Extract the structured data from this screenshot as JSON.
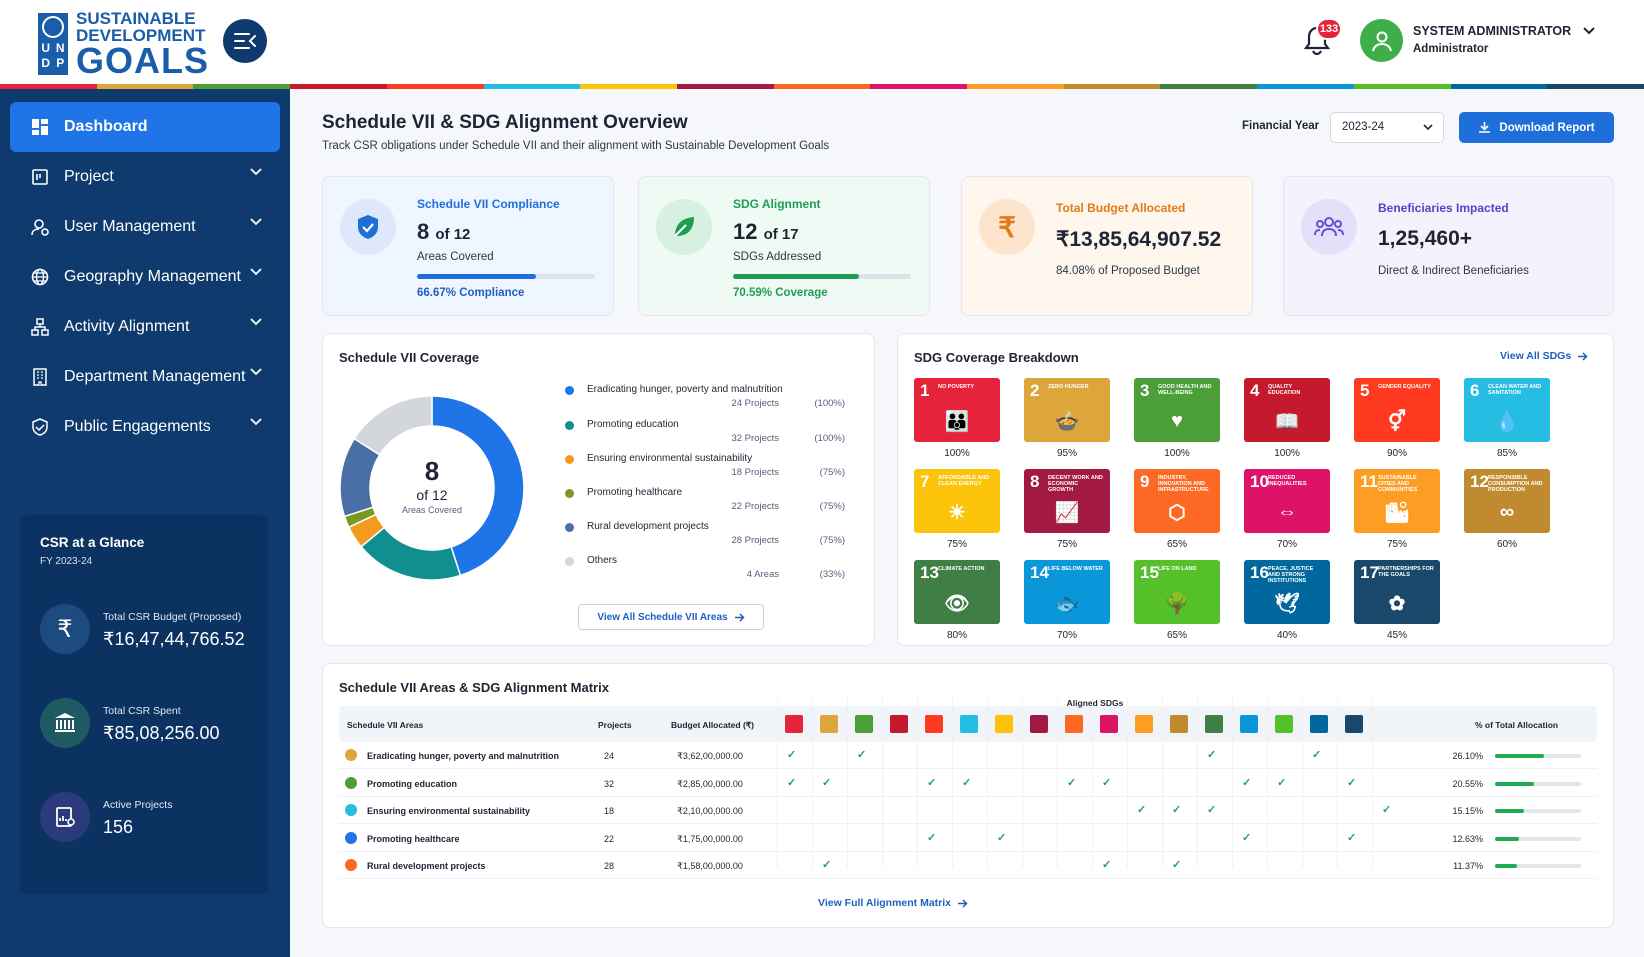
{
  "brand": {
    "line1": "SUSTAINABLE",
    "line2": "DEVELOPMENT",
    "line3": "GOALS",
    "un_letters": [
      "U",
      "N",
      "D",
      "P"
    ]
  },
  "header": {
    "notification_count": "133",
    "user_name": "SYSTEM ADMINISTRATOR",
    "user_role": "Administrator"
  },
  "colors": {
    "primary": "#1f6fdb",
    "sidebar": "#0e3a6d",
    "active": "#1f74e8",
    "success": "#1faa55"
  },
  "sidebar": {
    "items": [
      {
        "label": "Dashboard",
        "icon": "dashboard-icon"
      },
      {
        "label": "Project",
        "icon": "project-icon"
      },
      {
        "label": "User Management",
        "icon": "user-icon"
      },
      {
        "label": "Geography Management",
        "icon": "globe-icon"
      },
      {
        "label": "Activity Alignment",
        "icon": "hierarchy-icon"
      },
      {
        "label": "Department Management",
        "icon": "building-icon"
      },
      {
        "label": "Public Engagements",
        "icon": "handshake-icon"
      }
    ],
    "glance": {
      "title": "CSR at a Glance",
      "subtitle": "FY 2023-24",
      "stats": [
        {
          "label": "Total CSR Budget (Proposed)",
          "value": "₹16,47,44,766.52",
          "icon": "rupee-icon"
        },
        {
          "label": "Total CSR Spent",
          "value": "₹85,08,256.00",
          "icon": "bank-icon"
        },
        {
          "label": "Active Projects",
          "value": "156",
          "icon": "report-icon"
        }
      ]
    }
  },
  "page": {
    "title": "Schedule VII & SDG Alignment Overview",
    "subtitle": "Track CSR obligations under Schedule VII and their alignment with Sustainable Development Goals",
    "fy_label": "Financial Year",
    "fy_value": "2023-24",
    "download_label": "Download Report"
  },
  "kpis": [
    {
      "title": "Schedule VII Compliance",
      "value": "8",
      "of": "of 12",
      "sub": "Areas Covered",
      "progress": 66.67,
      "footer": "66.67% Compliance",
      "color": "#1f6fdb"
    },
    {
      "title": "SDG Alignment",
      "value": "12",
      "of": "of 17",
      "sub": "SDGs Addressed",
      "progress": 70.59,
      "footer": "70.59% Coverage",
      "color": "#1f9d55"
    },
    {
      "title": "Total Budget Allocated",
      "value": "₹13,85,64,907.52",
      "sub": "84.08% of Proposed Budget",
      "color": "#e07b19"
    },
    {
      "title": "Beneficiaries Impacted",
      "value": "1,25,460+",
      "sub": "Direct & Indirect Beneficiaries",
      "color": "#6a4cd6"
    }
  ],
  "coverage": {
    "title": "Schedule VII Coverage",
    "center_value": "8",
    "center_of": "of 12",
    "center_label": "Areas Covered",
    "legend": [
      {
        "name": "Eradicating hunger, poverty and malnutrition",
        "projects": "24 Projects",
        "pct": "(100%)",
        "color": "#1f74e8",
        "value": 45
      },
      {
        "name": "Promoting education",
        "projects": "32 Projects",
        "pct": "(100%)",
        "color": "#0f8f8f",
        "value": 19
      },
      {
        "name": "Ensuring environmental sustainability",
        "projects": "18 Projects",
        "pct": "(75%)",
        "color": "#f39b1f",
        "value": 4
      },
      {
        "name": "Promoting healthcare",
        "projects": "22 Projects",
        "pct": "(75%)",
        "color": "#7a9a1f",
        "value": 2
      },
      {
        "name": "Rural development projects",
        "projects": "28 Projects",
        "pct": "(75%)",
        "color": "#4a6fa5",
        "value": 14
      },
      {
        "name": "Others",
        "projects": "4 Areas",
        "pct": "(33%)",
        "color": "#d3d6db",
        "value": 16
      }
    ],
    "view_label": "View All Schedule VII Areas"
  },
  "sdg_breakdown": {
    "title": "SDG Coverage Breakdown",
    "view_label": "View All SDGs",
    "goals": [
      {
        "n": "1",
        "t": "No Poverty",
        "pct": "100%",
        "c": "#e5243b",
        "g": "👪"
      },
      {
        "n": "2",
        "t": "Zero Hunger",
        "pct": "95%",
        "c": "#dda63a",
        "g": "🍲"
      },
      {
        "n": "3",
        "t": "Good Health and Well-Being",
        "pct": "100%",
        "c": "#4c9f38",
        "g": "♥"
      },
      {
        "n": "4",
        "t": "Quality Education",
        "pct": "100%",
        "c": "#c5192d",
        "g": "📖"
      },
      {
        "n": "5",
        "t": "Gender Equality",
        "pct": "90%",
        "c": "#ff3a21",
        "g": "⚥"
      },
      {
        "n": "6",
        "t": "Clean Water and Sanitation",
        "pct": "85%",
        "c": "#26bde2",
        "g": "💧"
      },
      {
        "n": "7",
        "t": "Affordable and Clean Energy",
        "pct": "75%",
        "c": "#fcc30b",
        "g": "☀"
      },
      {
        "n": "8",
        "t": "Decent Work and Economic Growth",
        "pct": "75%",
        "c": "#a21942",
        "g": "📈"
      },
      {
        "n": "9",
        "t": "Industry, Innovation and Infrastructure",
        "pct": "65%",
        "c": "#fd6925",
        "g": "⬡"
      },
      {
        "n": "10",
        "t": "Reduced Inequalities",
        "pct": "70%",
        "c": "#dd1367",
        "g": "⇔"
      },
      {
        "n": "11",
        "t": "Sustainable Cities and Communities",
        "pct": "75%",
        "c": "#fd9d24",
        "g": "🏙"
      },
      {
        "n": "12",
        "t": "Responsible Consumption and Production",
        "pct": "60%",
        "c": "#bf8b2e",
        "g": "∞"
      },
      {
        "n": "13",
        "t": "Climate Action",
        "pct": "80%",
        "c": "#3f7e44",
        "g": "👁"
      },
      {
        "n": "14",
        "t": "Life Below Water",
        "pct": "70%",
        "c": "#0a97d9",
        "g": "🐟"
      },
      {
        "n": "15",
        "t": "Life On Land",
        "pct": "65%",
        "c": "#56c02b",
        "g": "🌳"
      },
      {
        "n": "16",
        "t": "Peace, Justice and Strong Institutions",
        "pct": "40%",
        "c": "#00689d",
        "g": "🕊"
      },
      {
        "n": "17",
        "t": "Partnerships for the Goals",
        "pct": "45%",
        "c": "#19486a",
        "g": "✿"
      }
    ]
  },
  "matrix": {
    "title": "Schedule VII Areas & SDG Alignment Matrix",
    "col_area": "Schedule VII Areas",
    "col_projects": "Projects",
    "col_budget": "Budget Allocated (₹)",
    "col_sdgs": "Aligned SDGs",
    "col_alloc": "% of Total Allocation",
    "view_label": "View Full Alignment Matrix",
    "rows": [
      {
        "name": "Eradicating hunger, poverty and malnutrition",
        "projects": "24",
        "budget": "₹3,62,00,000.00",
        "pct": "26.10%",
        "alloc": 26.1,
        "color": "#dda63a",
        "checks": [
          1,
          3,
          13,
          16
        ]
      },
      {
        "name": "Promoting education",
        "projects": "32",
        "budget": "₹2,85,00,000.00",
        "pct": "20.55%",
        "alloc": 20.55,
        "color": "#4c9f38",
        "checks": [
          1,
          2,
          5,
          6,
          9,
          10,
          14,
          15,
          17
        ]
      },
      {
        "name": "Ensuring environmental sustainability",
        "projects": "18",
        "budget": "₹2,10,00,000.00",
        "pct": "15.15%",
        "alloc": 15.15,
        "color": "#26bde2",
        "checks": [
          11,
          12,
          13,
          18
        ]
      },
      {
        "name": "Promoting healthcare",
        "projects": "22",
        "budget": "₹1,75,00,000.00",
        "pct": "12.63%",
        "alloc": 12.63,
        "color": "#1f74e8",
        "checks": [
          5,
          7,
          14,
          17
        ]
      },
      {
        "name": "Rural development projects",
        "projects": "28",
        "budget": "₹1,58,00,000.00",
        "pct": "11.37%",
        "alloc": 11.37,
        "color": "#fd6925",
        "checks": [
          2,
          10,
          12
        ]
      }
    ]
  }
}
